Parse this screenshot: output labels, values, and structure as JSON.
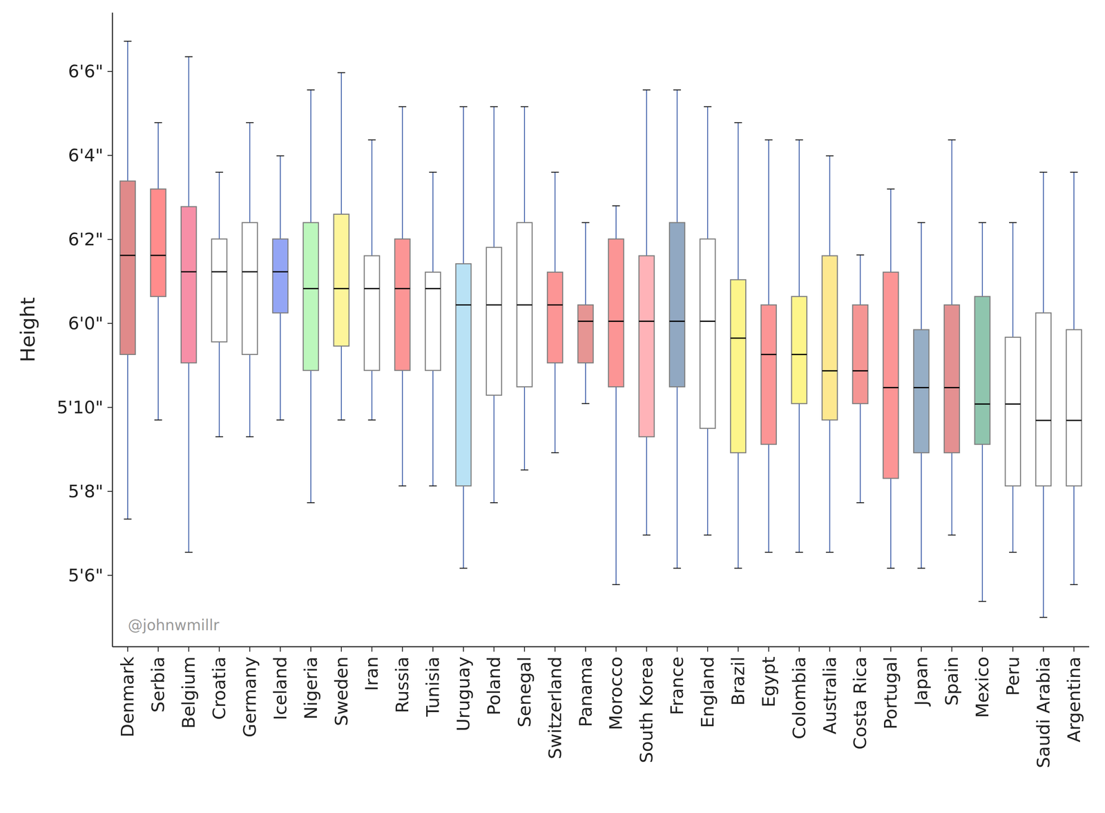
{
  "chart_data": {
    "type": "box",
    "y_label": "Height",
    "annotation": "@johnwmillr",
    "categories": [
      "Denmark",
      "Serbia",
      "Belgium",
      "Croatia",
      "Germany",
      "Iceland",
      "Nigeria",
      "Sweden",
      "Iran",
      "Russia",
      "Tunisia",
      "Uruguay",
      "Poland",
      "Senegal",
      "Switzerland",
      "Panama",
      "Morocco",
      "South Korea",
      "France",
      "England",
      "Brazil",
      "Egypt",
      "Colombia",
      "Australia",
      "Costa Rica",
      "Portugal",
      "Japan",
      "Spain",
      "Mexico",
      "Peru",
      "Saudi Arabia",
      "Argentina"
    ],
    "min": [
      67.34,
      69.7,
      66.55,
      69.3,
      69.3,
      69.7,
      67.73,
      69.7,
      69.7,
      68.13,
      68.13,
      66.17,
      67.73,
      68.51,
      68.92,
      70.09,
      65.78,
      66.96,
      66.17,
      66.96,
      66.17,
      66.55,
      66.55,
      66.55,
      67.73,
      66.17,
      66.17,
      66.96,
      65.38,
      66.55,
      65.0,
      65.78
    ],
    "q1": [
      71.26,
      72.64,
      71.06,
      71.56,
      71.26,
      72.25,
      70.88,
      71.46,
      70.88,
      70.88,
      70.88,
      68.13,
      70.29,
      70.49,
      71.06,
      71.06,
      70.49,
      69.3,
      70.49,
      69.5,
      68.92,
      69.12,
      70.09,
      69.7,
      70.09,
      68.31,
      68.92,
      68.92,
      69.12,
      68.13,
      68.13,
      68.13
    ],
    "median": [
      73.62,
      73.62,
      73.23,
      73.23,
      73.23,
      73.23,
      72.83,
      72.83,
      72.83,
      72.83,
      72.83,
      72.44,
      72.44,
      72.44,
      72.44,
      72.05,
      72.05,
      72.05,
      72.05,
      72.05,
      71.65,
      71.26,
      71.26,
      70.87,
      70.87,
      70.47,
      70.47,
      70.47,
      70.08,
      70.08,
      69.69,
      69.69
    ],
    "q3": [
      75.39,
      75.2,
      74.78,
      74.01,
      74.4,
      74.01,
      74.4,
      74.6,
      73.61,
      74.01,
      73.22,
      73.42,
      73.81,
      74.4,
      73.22,
      72.44,
      74.01,
      73.61,
      74.4,
      74.01,
      73.04,
      72.44,
      72.64,
      73.61,
      72.44,
      73.22,
      71.85,
      72.44,
      72.64,
      71.67,
      72.25,
      71.85
    ],
    "max": [
      78.72,
      76.78,
      78.35,
      75.6,
      76.78,
      75.99,
      77.56,
      77.97,
      76.37,
      77.16,
      75.6,
      77.16,
      77.16,
      77.16,
      75.6,
      74.4,
      74.8,
      77.56,
      77.56,
      77.16,
      76.78,
      76.37,
      76.37,
      75.99,
      73.63,
      75.2,
      74.4,
      76.37,
      74.4,
      74.4,
      75.6,
      75.6
    ],
    "colors": [
      "#e08a8a",
      "#ff8c8c",
      "#f78fa7",
      "#ffffff",
      "#ffffff",
      "#93a5f5",
      "#bcf7bc",
      "#fdf59a",
      "#ffffff",
      "#fc9595",
      "#ffffff",
      "#b9e2f5",
      "#ffffff",
      "#ffffff",
      "#fc9595",
      "#e69593",
      "#fc9595",
      "#ffb3b8",
      "#91a8c2",
      "#ffffff",
      "#fdf58a",
      "#fc9595",
      "#fdf58a",
      "#fde88f",
      "#f59593",
      "#fc9595",
      "#96aec6",
      "#e49091",
      "#8fc5ae",
      "#ffffff",
      "#ffffff",
      "#ffffff"
    ],
    "ylim": [
      64.3,
      79.4
    ],
    "yticks": [
      {
        "value": 66,
        "label": "5'6\""
      },
      {
        "value": 68,
        "label": "5'8\""
      },
      {
        "value": 70,
        "label": "5'10\""
      },
      {
        "value": 72,
        "label": "6'0\""
      },
      {
        "value": 74,
        "label": "6'2\""
      },
      {
        "value": 76,
        "label": "6'4\""
      },
      {
        "value": 78,
        "label": "6'6\""
      }
    ],
    "grid": false
  }
}
